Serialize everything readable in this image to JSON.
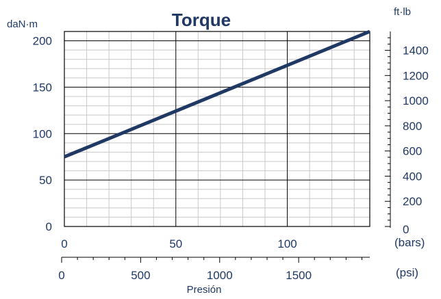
{
  "chart_data": {
    "type": "line",
    "title": "Torque",
    "y_left_unit": "daN·m",
    "y_right_unit": "ft·lb",
    "x_bars_unit": "(bars)",
    "x_psi_unit": "(psi)",
    "xlabel": "Presión",
    "xlim_bars": [
      0,
      137
    ],
    "ylim_left": [
      0,
      210
    ],
    "series": [
      {
        "x": [
          0,
          137
        ],
        "y": [
          75,
          210
        ]
      }
    ],
    "y_left_ticks": [
      "0",
      "50",
      "100",
      "150",
      "200"
    ],
    "y_right_ticks": [
      "0",
      "200",
      "400",
      "600",
      "800",
      "1000",
      "1200",
      "1400"
    ],
    "x_bars_ticks": [
      "0",
      "50",
      "100"
    ],
    "x_psi_ticks": [
      "0",
      "500",
      "1000",
      "1500"
    ],
    "grid": true,
    "colors": {
      "line": "#1f3864",
      "text": "#1f3864",
      "grid_minor": "#c8c8c8",
      "grid_major": "#000000"
    }
  }
}
